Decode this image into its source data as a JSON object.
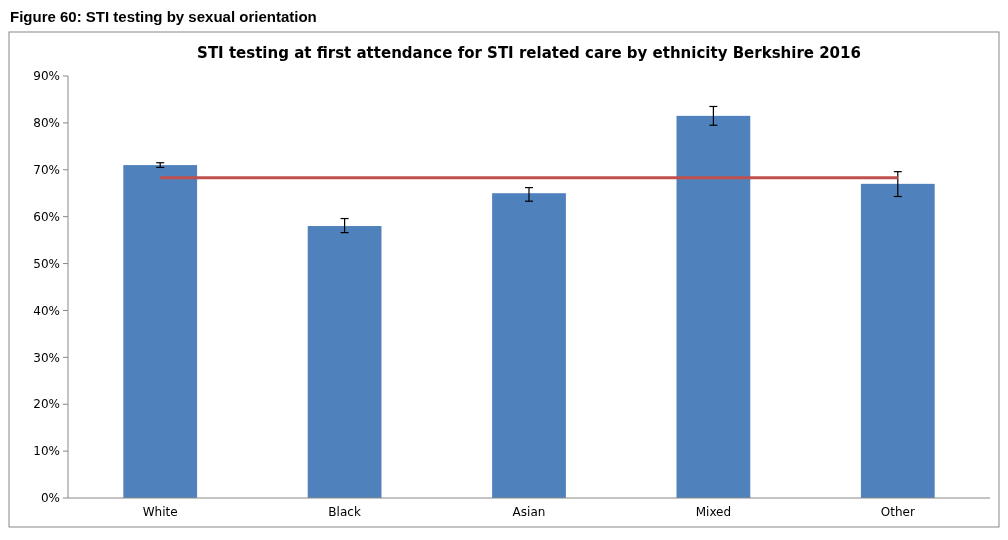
{
  "chart_data": {
    "type": "bar",
    "title": "STI testing at first attendance for STI related care by ethnicity Berkshire 2016",
    "annotations": [
      "Figure 60: STI testing by sexual orientation"
    ],
    "categories": [
      "White",
      "Black",
      "Asian",
      "Mixed",
      "Other"
    ],
    "values": [
      71,
      58,
      65,
      81.5,
      67
    ],
    "errors": [
      [
        70.5,
        71.5
      ],
      [
        56.6,
        59.6
      ],
      [
        63.3,
        66.2
      ],
      [
        79.5,
        83.5
      ],
      [
        64.3,
        69.6
      ]
    ],
    "color": "#4f81bd",
    "ylim": [
      0,
      90
    ],
    "yticks": [
      {
        "value": 0,
        "label": "0%"
      },
      {
        "value": 10,
        "label": "10%"
      },
      {
        "value": 20,
        "label": "20%"
      },
      {
        "value": 30,
        "label": "30%"
      },
      {
        "value": 40,
        "label": "40%"
      },
      {
        "value": 50,
        "label": "50%"
      },
      {
        "value": 60,
        "label": "60%"
      },
      {
        "value": 70,
        "label": "70%"
      },
      {
        "value": 80,
        "label": "80%"
      },
      {
        "value": 90,
        "label": "90%"
      }
    ],
    "ref_lines": [
      {
        "axis": "y",
        "value": 68.3,
        "color": "#c0504d"
      }
    ],
    "grid": false
  }
}
